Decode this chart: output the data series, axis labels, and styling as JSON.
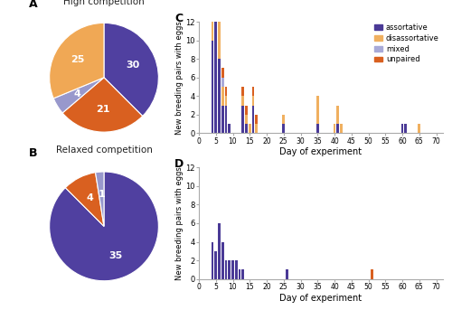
{
  "pie_A_values": [
    30,
    21,
    4,
    25
  ],
  "pie_A_colors": [
    "#5040a0",
    "#d96020",
    "#9898cc",
    "#f0a855"
  ],
  "pie_A_labels": [
    "30",
    "21",
    "4",
    "25"
  ],
  "pie_A_title": "High competition",
  "pie_B_values": [
    35,
    4,
    1
  ],
  "pie_B_colors": [
    "#5040a0",
    "#d96020",
    "#9898cc"
  ],
  "pie_B_labels": [
    "35",
    "4",
    "1"
  ],
  "pie_B_title": "Relaxed competition",
  "colors": {
    "assortative": "#4a3a96",
    "disassortative": "#f0b060",
    "mixed": "#a8aad8",
    "unpaired": "#d96020"
  },
  "C_assortative": {
    "4": 10,
    "5": 12,
    "6": 8,
    "7": 3,
    "8": 3,
    "9": 1,
    "13": 3,
    "14": 1,
    "16": 3,
    "25": 1,
    "35": 1,
    "41": 1,
    "60": 1,
    "61": 1
  },
  "C_disassortative": {
    "4": 4,
    "5": 4,
    "6": 4,
    "7": 2,
    "8": 1,
    "13": 1,
    "14": 1,
    "15": 1,
    "16": 1,
    "17": 1,
    "25": 1,
    "35": 3,
    "40": 1,
    "41": 2,
    "42": 1,
    "65": 1
  },
  "C_mixed": {
    "5": 1,
    "7": 1
  },
  "C_unpaired": {
    "5": 1,
    "6": 1,
    "7": 1,
    "8": 1,
    "13": 1,
    "14": 1,
    "16": 1,
    "17": 1
  },
  "D_assortative": {
    "4": 4,
    "5": 3,
    "6": 6,
    "7": 4,
    "8": 2,
    "9": 2,
    "10": 2,
    "11": 2,
    "12": 1,
    "13": 1,
    "26": 1
  },
  "D_disassortative": {},
  "D_mixed": {},
  "D_unpaired": {
    "51": 1
  },
  "legend_labels": [
    "assortative",
    "disassortative",
    "mixed",
    "unpaired"
  ],
  "xlabel": "Day of experiment",
  "ylabel": "New breeding pairs with eggs",
  "ylim_C": [
    0,
    12
  ],
  "ylim_D": [
    0,
    12
  ],
  "xticks": [
    0,
    5,
    10,
    15,
    20,
    25,
    30,
    35,
    40,
    45,
    50,
    55,
    60,
    65,
    70
  ]
}
